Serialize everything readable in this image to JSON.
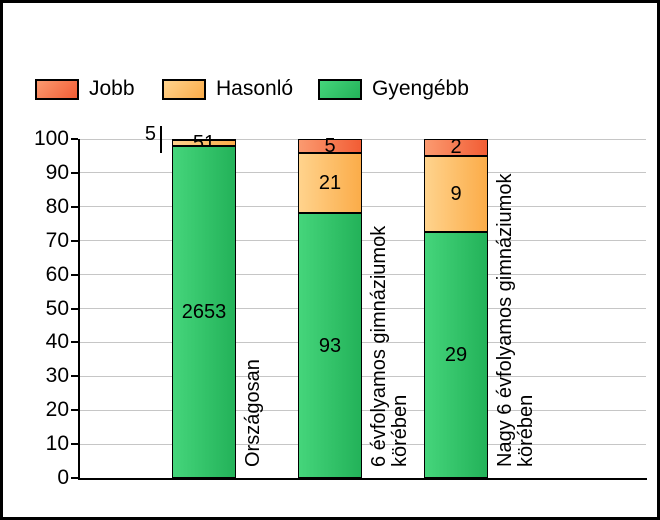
{
  "frame": {
    "background": "#ffffff",
    "border_color": "#000000"
  },
  "chart_data": {
    "type": "bar",
    "stacked": true,
    "normalized_to_percent": true,
    "title": "",
    "xlabel": "",
    "ylabel": "",
    "categories": [
      "Országosan",
      "6 évfolyamos gimnáziumok körében",
      "Nagy 6 évfolyamos gimnáziumok körében"
    ],
    "category_lines": [
      [
        "Országosan"
      ],
      [
        "6 évfolyamos gimnáziumok",
        "körében"
      ],
      [
        "Nagy 6 évfolyamos gimnáziumok",
        "körében"
      ]
    ],
    "series": [
      {
        "name": "Jobb",
        "values": [
          5,
          5,
          2
        ],
        "fill_from": "#fb9a70",
        "fill_to": "#f25d35",
        "border": "#000000"
      },
      {
        "name": "Hasonló",
        "values": [
          51,
          21,
          9
        ],
        "fill_from": "#ffd38d",
        "fill_to": "#fbac49",
        "border": "#000000"
      },
      {
        "name": "Gyengébb",
        "values": [
          2653,
          93,
          29
        ],
        "fill_from": "#45d57b",
        "fill_to": "#23b259",
        "border": "#000000"
      }
    ],
    "ylim": [
      0,
      100
    ],
    "ytick_step": 10,
    "ytick_labels": [
      "0",
      "10",
      "20",
      "30",
      "40",
      "50",
      "60",
      "70",
      "80",
      "90",
      "100"
    ],
    "grid": true,
    "gridline_color": "#c6c6c6",
    "legend_position": "top-left",
    "small_segment_callout_label": "5"
  }
}
